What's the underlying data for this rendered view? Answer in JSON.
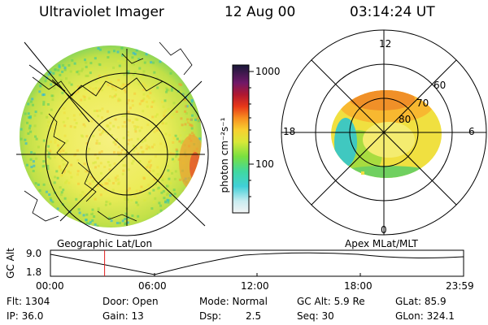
{
  "header": {
    "title": "Ultraviolet Imager",
    "date": "12 Aug 00",
    "time": "03:14:24 UT"
  },
  "left_panel": {
    "caption": "Geographic Lat/Lon",
    "palette": [
      "#22b4e8",
      "#30c8a0",
      "#5cd060",
      "#a8dc40",
      "#d8e840",
      "#f0e040",
      "#f8c838",
      "#f0a030"
    ]
  },
  "right_panel": {
    "caption": "Apex MLat/MLT",
    "mlt_labels": {
      "top": "12",
      "left": "18",
      "right": "6",
      "bottom": "0"
    },
    "mlat_labels": [
      "60",
      "70",
      "80"
    ]
  },
  "colorbar": {
    "unit_label": "photon cm⁻²s⁻¹",
    "ticks": [
      "1000",
      "100"
    ]
  },
  "timeline": {
    "ylabel": "GC Alt",
    "y_ticks": [
      "9.0",
      "1.8"
    ],
    "x_ticks": [
      "00:00",
      "06:00",
      "12:00",
      "18:00",
      "23:59"
    ],
    "current_time_fraction": 0.1311
  },
  "info": {
    "flt": "Flt: 1304",
    "ip": "IP: 36.0",
    "door": "Door: Open",
    "gain": "Gain: 13",
    "mode": "Mode: Normal",
    "dsp_label": "Dsp:",
    "dsp_value": "2.5",
    "gcalt": "GC Alt: 5.9 Re",
    "seq": "Seq: 30",
    "glat": "GLat: 85.9",
    "glon": "GLon: 324.1"
  }
}
